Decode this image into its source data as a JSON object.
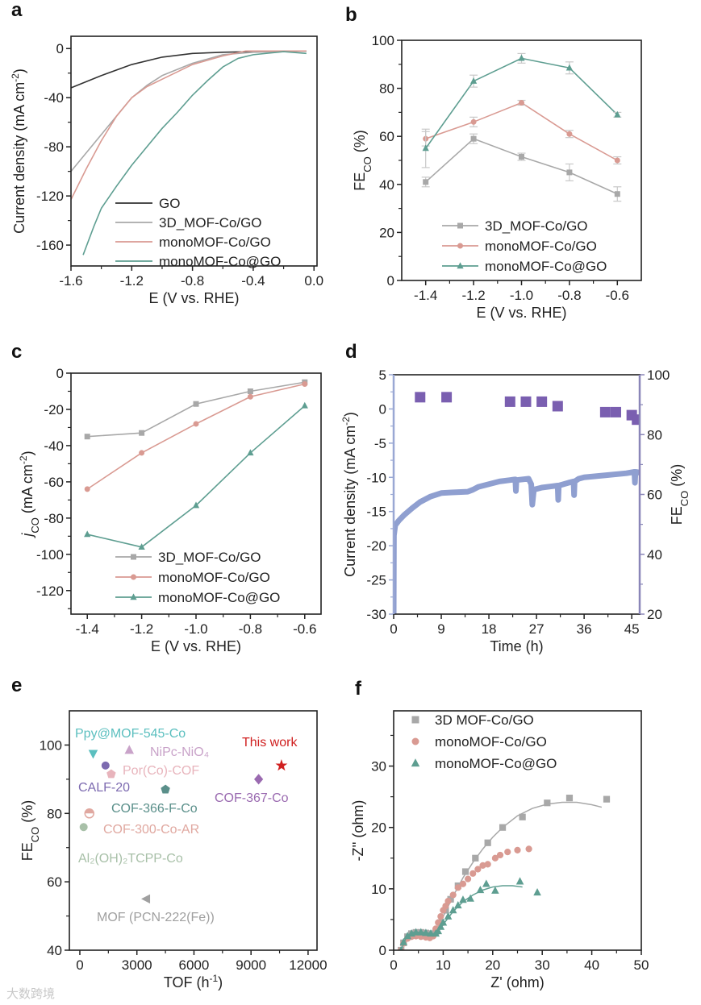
{
  "watermark": "大数跨境",
  "panels": [
    {
      "letter": "a",
      "type": "line",
      "xlim": [
        -1.6,
        0.02
      ],
      "ylim": [
        -177,
        10
      ],
      "xticks": [
        -1.6,
        -1.2,
        -0.8,
        -0.4,
        0.0
      ],
      "xtick_labels": [
        "-1.6",
        "-1.2",
        "-0.8",
        "-0.4",
        "0.0"
      ],
      "yticks": [
        0,
        -40,
        -80,
        -120,
        -160
      ],
      "ytick_labels": [
        "0",
        "-40",
        "-80",
        "-120",
        "-160"
      ],
      "xlabel": [
        {
          "t": "E (V vs. RHE)"
        }
      ],
      "ylabel": [
        {
          "t": "Current density (mA cm"
        },
        {
          "t": "-2",
          "sup": true
        },
        {
          "t": ")"
        }
      ],
      "series": [
        {
          "name": "GO",
          "color": "#333333",
          "style": "line",
          "x": [
            -1.6,
            -1.4,
            -1.2,
            -1.0,
            -0.8,
            -0.6,
            -0.4,
            -0.2,
            -0.05
          ],
          "y": [
            -32,
            -22,
            -13,
            -7,
            -4,
            -3,
            -2.5,
            -2,
            -2
          ]
        },
        {
          "name": "3D_MOF-Co/GO",
          "color": "#a8a8a8",
          "style": "line",
          "x": [
            -1.6,
            -1.5,
            -1.4,
            -1.3,
            -1.2,
            -1.1,
            -1.0,
            -0.9,
            -0.8,
            -0.6,
            -0.4,
            -0.2,
            -0.05
          ],
          "y": [
            -100,
            -85,
            -70,
            -55,
            -40,
            -30,
            -22,
            -17,
            -12,
            -5,
            -3,
            -2.5,
            -2
          ]
        },
        {
          "name": "monoMOF-Co/GO",
          "color": "#d99a92",
          "style": "line",
          "x": [
            -1.6,
            -1.5,
            -1.4,
            -1.3,
            -1.2,
            -1.1,
            -1.0,
            -0.9,
            -0.8,
            -0.6,
            -0.45,
            -0.3,
            -0.05
          ],
          "y": [
            -123,
            -98,
            -75,
            -55,
            -40,
            -31,
            -25,
            -19,
            -13,
            -6,
            -2,
            -2,
            -2
          ]
        },
        {
          "name": "monoMOF-Co@GO",
          "color": "#5e9e91",
          "style": "line",
          "x": [
            -1.52,
            -1.45,
            -1.4,
            -1.3,
            -1.2,
            -1.1,
            -1.0,
            -0.9,
            -0.8,
            -0.7,
            -0.6,
            -0.5,
            -0.4,
            -0.2,
            -0.05
          ],
          "y": [
            -168,
            -145,
            -130,
            -112,
            -95,
            -80,
            -65,
            -52,
            -38,
            -26,
            -15,
            -8,
            -5,
            -2.5,
            -4
          ]
        }
      ]
    },
    {
      "letter": "b",
      "type": "line",
      "xlim": [
        -1.5,
        -0.5
      ],
      "ylim": [
        0,
        100
      ],
      "xticks": [
        -1.4,
        -1.2,
        -1.0,
        -0.8,
        -0.6
      ],
      "xtick_labels": [
        "-1.4",
        "-1.2",
        "-1.0",
        "-0.8",
        "-0.6"
      ],
      "yticks": [
        0,
        20,
        40,
        60,
        80,
        100
      ],
      "ytick_labels": [
        "0",
        "20",
        "40",
        "60",
        "80",
        "100"
      ],
      "xlabel": [
        {
          "t": "E (V vs. RHE)"
        }
      ],
      "ylabel": [
        {
          "t": "FE"
        },
        {
          "t": "CO",
          "sub": true
        },
        {
          "t": " (%)"
        }
      ],
      "series": [
        {
          "name": "3D_MOF-Co/GO",
          "color": "#a8a8a8",
          "marker": "square",
          "style": "line-markers",
          "x": [
            -1.4,
            -1.2,
            -1.0,
            -0.8,
            -0.6
          ],
          "y": [
            41,
            59,
            51.5,
            45,
            36
          ],
          "err": [
            2,
            2,
            1.5,
            3.5,
            3
          ]
        },
        {
          "name": "monoMOF-Co/GO",
          "color": "#d99a92",
          "marker": "circle",
          "style": "line-markers",
          "x": [
            -1.4,
            -1.2,
            -1.0,
            -0.8,
            -0.6
          ],
          "y": [
            59,
            66,
            74,
            61,
            50
          ],
          "err": [
            3,
            2,
            1,
            1.5,
            1.5
          ]
        },
        {
          "name": "monoMOF-Co@GO",
          "color": "#5e9e91",
          "marker": "triangle",
          "style": "line-markers",
          "x": [
            -1.4,
            -1.2,
            -1.0,
            -0.8,
            -0.6
          ],
          "y": [
            55,
            83,
            92.5,
            88.5,
            69
          ],
          "err": [
            8,
            2.5,
            2,
            2.5,
            1
          ]
        }
      ]
    },
    {
      "letter": "c",
      "type": "line",
      "xlim": [
        -1.46,
        -0.54
      ],
      "ylim": [
        -133,
        0
      ],
      "xticks": [
        -1.4,
        -1.2,
        -1.0,
        -0.8,
        -0.6
      ],
      "xtick_labels": [
        "-1.4",
        "-1.2",
        "-1.0",
        "-0.8",
        "-0.6"
      ],
      "yticks": [
        0,
        -20,
        -40,
        -60,
        -80,
        -100,
        -120
      ],
      "ytick_labels": [
        "0",
        "-20",
        "-40",
        "-60",
        "-80",
        "-100",
        "-120"
      ],
      "xlabel": [
        {
          "t": "E (V vs. RHE)"
        }
      ],
      "ylabel": [
        {
          "t": "j",
          "italic": true
        },
        {
          "t": "CO",
          "sub": true
        },
        {
          "t": " (mA cm"
        },
        {
          "t": "-2",
          "sup": true
        },
        {
          "t": ")"
        }
      ],
      "series": [
        {
          "name": "3D_MOF-Co/GO",
          "color": "#a8a8a8",
          "marker": "square",
          "style": "line-markers",
          "x": [
            -1.4,
            -1.2,
            -1.0,
            -0.8,
            -0.6
          ],
          "y": [
            -35,
            -33,
            -17,
            -10,
            -5
          ]
        },
        {
          "name": "monoMOF-Co/GO",
          "color": "#d99a92",
          "marker": "circle",
          "style": "line-markers",
          "x": [
            -1.4,
            -1.2,
            -1.0,
            -0.8,
            -0.6
          ],
          "y": [
            -64,
            -44,
            -28,
            -13,
            -6
          ]
        },
        {
          "name": "monoMOF-Co@GO",
          "color": "#5e9e91",
          "marker": "triangle",
          "style": "line-markers",
          "x": [
            -1.4,
            -1.2,
            -1.0,
            -0.8,
            -0.6
          ],
          "y": [
            -89,
            -96,
            -73,
            -44,
            -18
          ]
        }
      ]
    },
    {
      "letter": "d",
      "type": "dual-axis",
      "xlim": [
        0,
        46.5
      ],
      "ylim": [
        -30,
        5
      ],
      "ylim_right": [
        20,
        100
      ],
      "xticks": [
        0,
        9,
        18,
        27,
        36,
        45
      ],
      "xtick_labels": [
        "0",
        "9",
        "18",
        "27",
        "36",
        "45"
      ],
      "yticks": [
        5,
        0,
        -5,
        -10,
        -15,
        -20,
        -25,
        -30
      ],
      "ytick_labels": [
        "5",
        "0",
        "-5",
        "-10",
        "-15",
        "-20",
        "-25",
        "-30"
      ],
      "yticks_right": [
        20,
        40,
        60,
        80,
        100
      ],
      "ytick_labels_right": [
        "20",
        "40",
        "60",
        "80",
        "100"
      ],
      "xlabel": [
        {
          "t": "Time (h)"
        }
      ],
      "ylabel": [
        {
          "t": "Current density (mA cm"
        },
        {
          "t": "-2",
          "sup": true
        },
        {
          "t": ")"
        }
      ],
      "ylabel_right": [
        {
          "t": "FE"
        },
        {
          "t": "CO",
          "sub": true
        },
        {
          "t": " (%)"
        }
      ],
      "left_axis_color": "#9aa8d4",
      "right_axis_color": "#8a86b8",
      "series": [
        {
          "name": "Current density",
          "color": "#8f9fd0",
          "style": "thick-line",
          "axis": "left",
          "x": [
            0,
            0.05,
            0.3,
            1,
            2,
            3.5,
            5,
            7,
            9,
            11,
            14,
            15,
            16,
            18,
            20,
            22,
            23,
            23.1,
            23.2,
            25.5,
            26,
            26.2,
            26.5,
            28,
            30,
            31,
            31.1,
            31.2,
            33,
            34,
            34.1,
            34.2,
            35,
            36,
            40,
            44,
            45.5,
            45.6,
            45.7,
            46.5
          ],
          "y": [
            -30,
            -18.5,
            -17,
            -16.3,
            -15.5,
            -14.5,
            -13.6,
            -12.8,
            -12.3,
            -12.2,
            -12.1,
            -11.8,
            -11.4,
            -11,
            -10.6,
            -10.4,
            -10.3,
            -12,
            -10.4,
            -10.2,
            -11,
            -14,
            -11.8,
            -11.5,
            -11.3,
            -11.2,
            -13.3,
            -11.2,
            -10.8,
            -10.6,
            -12.6,
            -10.6,
            -10.2,
            -10,
            -9.7,
            -9.4,
            -9.2,
            -10.8,
            -9.2,
            -9.3
          ]
        },
        {
          "name": "FE CO",
          "color": "#7a5fb0",
          "style": "markers",
          "marker": "square-big",
          "axis": "right",
          "x": [
            5,
            10,
            22,
            25,
            28,
            31,
            40,
            42,
            45,
            46
          ],
          "y": [
            92.5,
            92.5,
            91,
            91,
            91,
            89.5,
            87.5,
            87.5,
            86.5,
            85
          ]
        }
      ]
    },
    {
      "letter": "e",
      "type": "scatter",
      "xlim": [
        -550,
        12470
      ],
      "ylim": [
        40,
        110
      ],
      "xticks": [
        0,
        3000,
        6000,
        9000,
        12000
      ],
      "xtick_labels": [
        "0",
        "3000",
        "6000",
        "9000",
        "12000"
      ],
      "yticks": [
        40,
        60,
        80,
        100
      ],
      "ytick_labels": [
        "40",
        "60",
        "80",
        "100"
      ],
      "xlabel": [
        {
          "t": "TOF (h"
        },
        {
          "t": "-1",
          "sup": true
        },
        {
          "t": ")"
        }
      ],
      "ylabel": [
        {
          "t": "FE"
        },
        {
          "t": "CO",
          "sub": true
        },
        {
          "t": " (%)"
        }
      ],
      "points": [
        {
          "label": "Ppy@MOF-545-Co",
          "x": 700,
          "y": 97.5,
          "color": "#5bbfbf",
          "marker": "triangle-down"
        },
        {
          "label": "NiPc-NiO₄",
          "x": 2600,
          "y": 98.5,
          "color": "#c9a3c9",
          "marker": "triangle"
        },
        {
          "label": "Por(Co)-COF",
          "x": 1650,
          "y": 91.5,
          "color": "#e8b4bc",
          "marker": "pentagon"
        },
        {
          "label": "CALF-20",
          "x": 1350,
          "y": 94,
          "color": "#7d6bb0",
          "marker": "circle"
        },
        {
          "label": "COF-366-F-Co",
          "x": 4500,
          "y": 87,
          "color": "#5a8f8a",
          "marker": "pentagon"
        },
        {
          "label": "COF-367-Co",
          "x": 9400,
          "y": 90,
          "color": "#9a6ab0",
          "marker": "diamond"
        },
        {
          "label": "This work",
          "x": 10600,
          "y": 94,
          "color": "#d02020",
          "marker": "star"
        },
        {
          "label": "COF-300-Co-AR",
          "x": 500,
          "y": 80,
          "color": "#e0a8a0",
          "marker": "half-circle"
        },
        {
          "label": "Al₂(OH)₂TCPP-Co",
          "x": 200,
          "y": 76,
          "color": "#a8c0a8",
          "marker": "circle"
        },
        {
          "label": "MOF (PCN-222(Fe))",
          "x": 3500,
          "y": 55,
          "color": "#a0a0a0",
          "marker": "triangle-left"
        }
      ]
    },
    {
      "letter": "f",
      "type": "scatter",
      "xlim": [
        0,
        50
      ],
      "ylim": [
        0,
        39
      ],
      "xticks": [
        0,
        10,
        20,
        30,
        40,
        50
      ],
      "xtick_labels": [
        "0",
        "10",
        "20",
        "30",
        "40",
        "50"
      ],
      "yticks": [
        0,
        10,
        20,
        30
      ],
      "ytick_labels": [
        "0",
        "10",
        "20",
        "30"
      ],
      "xlabel": [
        {
          "t": "Z' (ohm)"
        }
      ],
      "ylabel": [
        {
          "t": "-Z'' (ohm)"
        }
      ],
      "series": [
        {
          "name": "3D MOF-Co/GO",
          "color": "#a8a8a8",
          "marker": "square",
          "style": "markers-fit",
          "x": [
            1.5,
            2,
            2.8,
            3.6,
            4.5,
            5.5,
            6.5,
            7.5,
            8.5,
            9.5,
            10.5,
            11.5,
            13,
            14.5,
            16.5,
            19,
            22,
            26,
            31,
            35.5,
            43
          ],
          "y": [
            0,
            1.2,
            2.2,
            2.7,
            2.9,
            2.9,
            2.8,
            2.7,
            3,
            4.5,
            6.5,
            8.3,
            10.5,
            12.8,
            15,
            17.5,
            20,
            21.7,
            24,
            24.8,
            24.6
          ],
          "fit_x": [
            1.5,
            2.5,
            4,
            6,
            7.5,
            8.5,
            10,
            12,
            14,
            16,
            18,
            20,
            22,
            25,
            28,
            31,
            34,
            37,
            40,
            42
          ],
          "fit_y": [
            0,
            1.8,
            2.8,
            2.8,
            2.6,
            3,
            5.5,
            8.8,
            11.8,
            14.3,
            16.5,
            18.4,
            20,
            21.9,
            23.1,
            23.8,
            24.1,
            24.1,
            23.7,
            23.3
          ]
        },
        {
          "name": "monoMOF-Co/GO",
          "color": "#d99a92",
          "marker": "circle",
          "style": "markers",
          "x": [
            1.5,
            2,
            2.8,
            3.6,
            4.5,
            5.5,
            6.5,
            7.3,
            8,
            8.5,
            9,
            9.5,
            10,
            10.5,
            11,
            12,
            13,
            14,
            15,
            16,
            17,
            18,
            19,
            20.5,
            21.5,
            23,
            25,
            27.3
          ],
          "y": [
            0,
            1.1,
            1.9,
            2.2,
            2.3,
            2.2,
            2.1,
            2,
            2.3,
            3.5,
            4.5,
            5.5,
            6.5,
            7.2,
            8,
            9,
            10.2,
            10.8,
            11.6,
            12.5,
            13.2,
            13.8,
            14,
            15,
            15.5,
            16,
            16.3,
            16.5
          ]
        },
        {
          "name": "monoMOF-Co@GO",
          "color": "#5e9e91",
          "marker": "triangle",
          "style": "markers-fit",
          "x": [
            1.5,
            2,
            2.8,
            3.6,
            4.5,
            5.5,
            6.5,
            7.5,
            8.5,
            9,
            9.5,
            10,
            11,
            12,
            13,
            14,
            15.5,
            17.5,
            18.7,
            20.5,
            25.5,
            29
          ],
          "y": [
            0,
            1.3,
            2.3,
            2.7,
            2.9,
            2.9,
            2.8,
            2.7,
            2.7,
            3.1,
            3.8,
            4.5,
            5.5,
            6.5,
            7.3,
            8.2,
            8.4,
            9.8,
            10.8,
            9.7,
            11.2,
            9.4
          ],
          "fit_x": [
            1.5,
            2.5,
            4,
            6,
            8,
            9,
            10,
            12,
            14,
            16,
            18,
            20,
            22,
            24,
            26
          ],
          "fit_y": [
            0,
            2,
            2.9,
            2.9,
            2.7,
            3,
            4.2,
            6.3,
            7.9,
            9,
            9.8,
            10.3,
            10.5,
            10.5,
            10.3
          ]
        }
      ]
    }
  ]
}
